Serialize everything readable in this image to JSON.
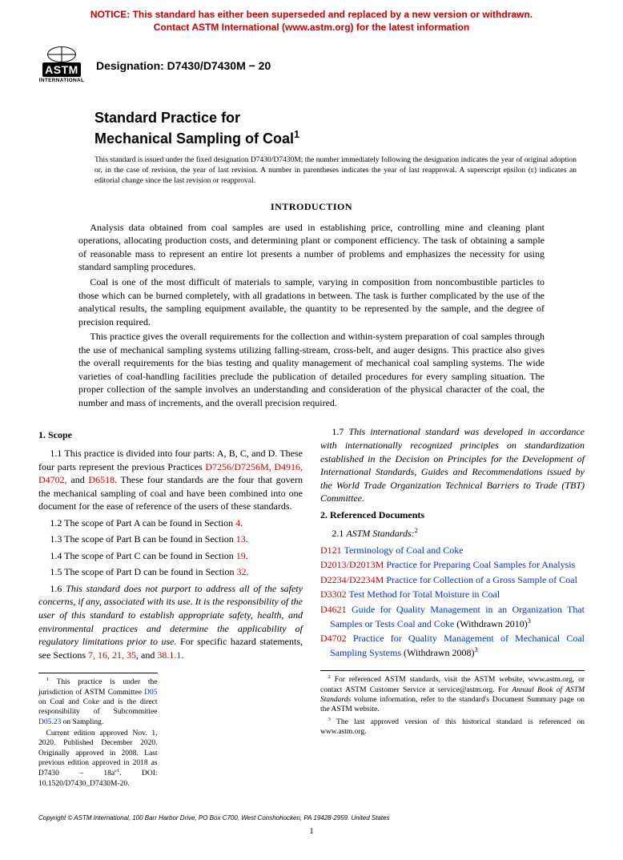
{
  "notice": {
    "line1": "NOTICE: This standard has either been superseded and replaced by a new version or withdrawn.",
    "line2": "Contact ASTM International (www.astm.org) for the latest information"
  },
  "logo": {
    "main": "ASTM",
    "sub": "INTERNATIONAL"
  },
  "designation": "Designation: D7430/D7430M − 20",
  "title": {
    "line1": "Standard Practice for",
    "line2": "Mechanical Sampling of Coal",
    "sup": "1"
  },
  "issuance_note": "This standard is issued under the fixed designation D7430/D7430M; the number immediately following the designation indicates the year of original adoption or, in the case of revision, the year of last revision. A number in parentheses indicates the year of last reapproval. A superscript epsilon (ε) indicates an editorial change since the last revision or reapproval.",
  "introduction": {
    "heading": "INTRODUCTION",
    "p1": "Analysis data obtained from coal samples are used in establishing price, controlling mine and cleaning plant operations, allocating production costs, and determining plant or component efficiency. The task of obtaining a sample of reasonable mass to represent an entire lot presents a number of problems and emphasizes the necessity for using standard sampling procedures.",
    "p2": "Coal is one of the most difficult of materials to sample, varying in composition from noncombustible particles to those which can be burned completely, with all gradations in between. The task is further complicated by the use of the analytical results, the sampling equipment available, the quantity to be represented by the sample, and the degree of precision required.",
    "p3": "This practice gives the overall requirements for the collection and within-system preparation of coal samples through the use of mechanical sampling systems utilizing falling-stream, cross-belt, and auger designs. This practice also gives the overall requirements for the bias testing and quality management of mechanical coal sampling systems. The wide varieties of coal-handling facilities preclude the publication of detailed procedures for every sampling situation. The proper collection of the sample involves an understanding and consideration of the physical character of the coal, the number and mass of increments, and the overall precision required."
  },
  "scope": {
    "heading": "1. Scope",
    "p11a": "1.1 This practice is divided into four parts: A, B, C, and D. These four parts represent the previous Practices ",
    "p11_links": "D7256/D7256M, D4916, D4702, ",
    "p11_and": "and ",
    "p11_link2": "D6518",
    "p11b": ". These four standards are the four that govern the mechanical sampling of coal and have been combined into one document for the ease of reference of the users of these standards.",
    "p12": "1.2 The scope of Part A can be found in Section ",
    "p12_link": "4",
    "p13": "1.3 The scope of Part B can be found in Section ",
    "p13_link": "13",
    "p14": "1.4 The scope of Part C can be found in Section ",
    "p14_link": "19",
    "p15": "1.5 The scope of Part D can be found in Section ",
    "p15_link": "32",
    "p16a": "1.6 ",
    "p16b": "This standard does not purport to address all of the safety concerns, if any, associated with its use. It is the responsibility of the user of this standard to establish appropriate safety, health, and environmental practices and determine the applicability of regulatory limitations prior to use.",
    "p16c": " For specific hazard statements, see Sections ",
    "p16_links": "7, 16, 21, 35",
    "p16d": ", and ",
    "p16_link2": "38.1.1",
    "p17a": "1.7 ",
    "p17b": "This international standard was developed in accordance with internationally recognized principles on standardization established in the Decision on Principles for the Development of International Standards, Guides and Recommendations issued by the World Trade Organization Technical Barriers to Trade (TBT) Committee."
  },
  "references": {
    "heading": "2. Referenced Documents",
    "sub": "2.1 ",
    "sub_italic": "ASTM Standards:",
    "sup2": "2",
    "items": [
      {
        "code": "D121",
        "title": " Terminology of Coal and Coke"
      },
      {
        "code": "D2013/D2013M",
        "title": " Practice for Preparing Coal Samples for Analysis"
      },
      {
        "code": "D2234/D2234M",
        "title": " Practice for Collection of a Gross Sample of Coal"
      },
      {
        "code": "D3302",
        "title": " Test Method for Total Moisture in Coal"
      },
      {
        "code": "D4621",
        "title": " Guide for Quality Management in an Organization That Samples or Tests Coal and Coke",
        "withdrawn": " (Withdrawn 2010)",
        "sup": "3"
      },
      {
        "code": "D4702",
        "title": " Practice for Quality Management of Mechanical Coal Sampling Systems",
        "withdrawn": " (Withdrawn 2008)",
        "sup": "3"
      }
    ]
  },
  "footnotes_left": {
    "f1a": "1",
    "f1b": " This practice is under the jurisdiction of ASTM Committee ",
    "f1_link1": "D05",
    "f1c": " on Coal and Coke and is the direct responsibility of Subcommittee ",
    "f1_link2": "D05.23",
    "f1d": " on Sampling.",
    "f1e": "Current edition approved Nov. 1, 2020. Published December 2020. Originally approved in 2008. Last previous edition approved in 2018 as D7430 – 18a",
    "f1_eps": "ε1",
    "f1f": ". DOI: 10.1520/D7430_D7430M-20."
  },
  "footnotes_right": {
    "f2a": "2",
    "f2b": " For referenced ASTM standards, visit the ASTM website, www.astm.org, or contact ASTM Customer Service at service@astm.org. For ",
    "f2_italic": "Annual Book of ASTM Standards",
    "f2c": " volume information, refer to the standard's Document Summary page on the ASTM website.",
    "f3a": "3",
    "f3b": " The last approved version of this historical standard is referenced on www.astm.org."
  },
  "copyright": "Copyright © ASTM International, 100 Barr Harbor Drive, PO Box C700, West Conshohocken, PA 19428-2959. United States",
  "page_number": "1",
  "period": "."
}
